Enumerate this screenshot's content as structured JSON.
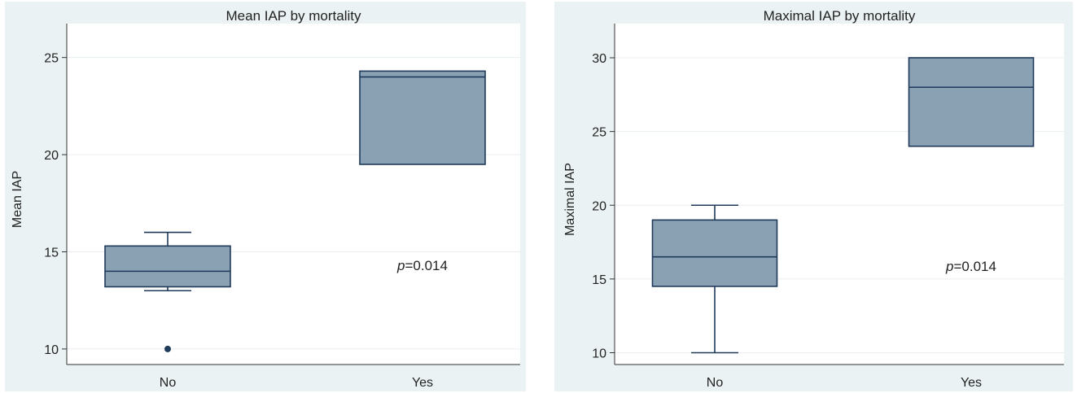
{
  "chart_data": [
    {
      "type": "box",
      "title": "Mean IAP by mortality",
      "ylabel": "Mean IAP",
      "xlabel": "",
      "categories": [
        "No",
        "Yes"
      ],
      "ylim": [
        9.2,
        26.2
      ],
      "yticks": [
        10,
        15,
        20,
        25
      ],
      "grid": true,
      "boxes": [
        {
          "category": "No",
          "whisker_low": 13,
          "q1": 13.2,
          "median": 14,
          "q3": 15.3,
          "whisker_high": 16,
          "outliers": [
            10
          ]
        },
        {
          "category": "Yes",
          "whisker_low": 19.5,
          "q1": 19.5,
          "median": 24,
          "q3": 24.3,
          "whisker_high": 24.3,
          "outliers": []
        }
      ],
      "annotation": {
        "prefix": "p",
        "text": "=0.014"
      },
      "box_color": "#8aa0b3",
      "line_color": "#1f3a5a"
    },
    {
      "type": "box",
      "title": "Maximal IAP by mortality",
      "ylabel": "Maximal IAP",
      "xlabel": "",
      "categories": [
        "No",
        "Yes"
      ],
      "ylim": [
        9.2,
        31.6
      ],
      "yticks": [
        10,
        15,
        20,
        25,
        30
      ],
      "grid": true,
      "boxes": [
        {
          "category": "No",
          "whisker_low": 10,
          "q1": 14.5,
          "median": 16.5,
          "q3": 19,
          "whisker_high": 20,
          "outliers": []
        },
        {
          "category": "Yes",
          "whisker_low": 24,
          "q1": 24,
          "median": 28,
          "q3": 30,
          "whisker_high": 30,
          "outliers": []
        }
      ],
      "annotation": {
        "prefix": "p",
        "text": "=0.014"
      },
      "box_color": "#8aa0b3",
      "line_color": "#1f3a5a"
    }
  ]
}
